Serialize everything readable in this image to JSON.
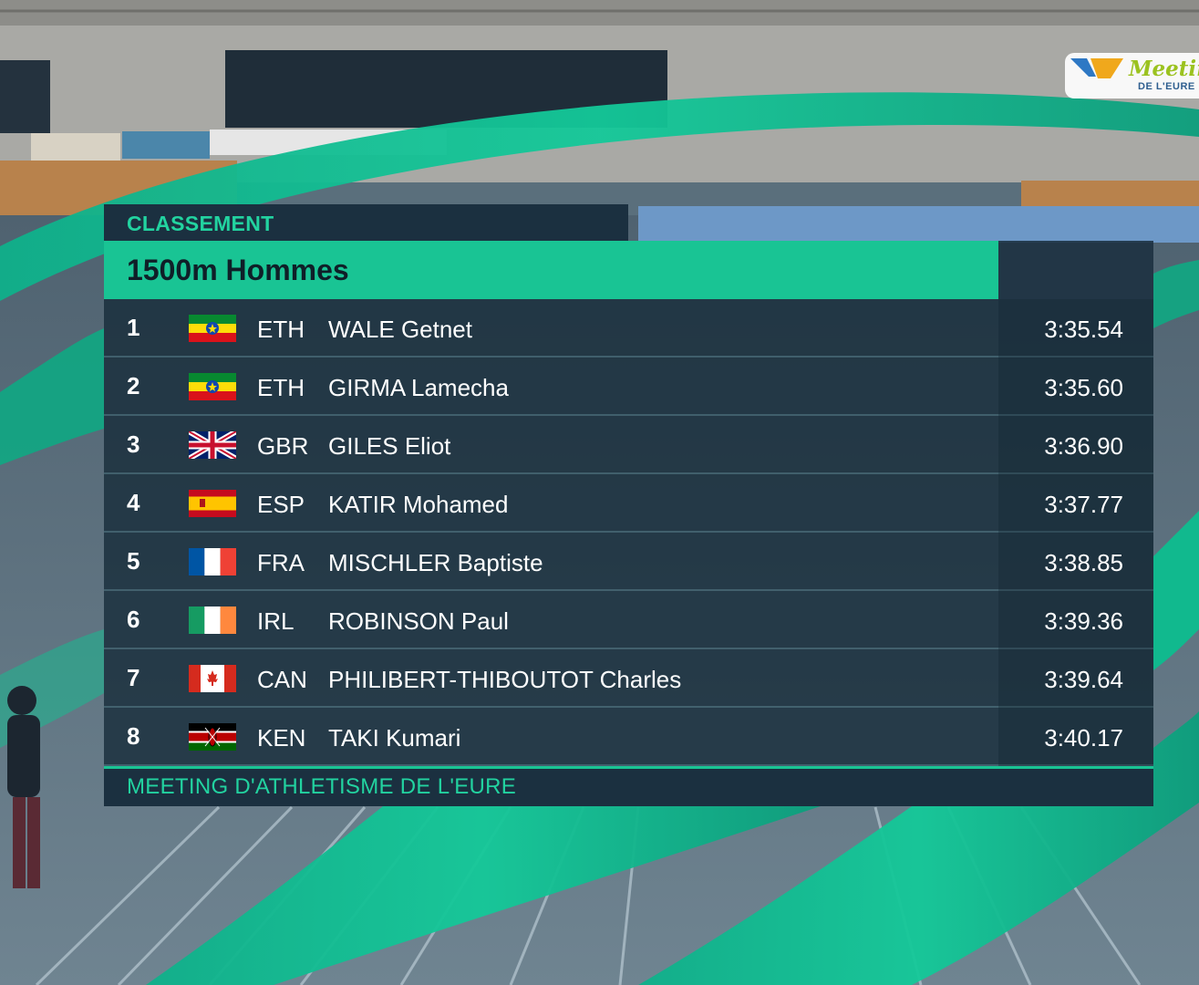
{
  "header": {
    "category": "CLASSEMENT",
    "event_title": "1500m Hommes"
  },
  "results": [
    {
      "rank": "1",
      "nation": "ETH",
      "flag": "ethiopia-flag-icon",
      "name": "WALE Getnet",
      "time": "3:35.54"
    },
    {
      "rank": "2",
      "nation": "ETH",
      "flag": "ethiopia-flag-icon",
      "name": "GIRMA Lamecha",
      "time": "3:35.60"
    },
    {
      "rank": "3",
      "nation": "GBR",
      "flag": "united-kingdom-flag-icon",
      "name": "GILES Eliot",
      "time": "3:36.90"
    },
    {
      "rank": "4",
      "nation": "ESP",
      "flag": "spain-flag-icon",
      "name": "KATIR Mohamed",
      "time": "3:37.77"
    },
    {
      "rank": "5",
      "nation": "FRA",
      "flag": "france-flag-icon",
      "name": "MISCHLER Baptiste",
      "time": "3:38.85"
    },
    {
      "rank": "6",
      "nation": "IRL",
      "flag": "ireland-flag-icon",
      "name": "ROBINSON Paul",
      "time": "3:39.36"
    },
    {
      "rank": "7",
      "nation": "CAN",
      "flag": "canada-flag-icon",
      "name": "PHILIBERT-THIBOUTOT Charles",
      "time": "3:39.64"
    },
    {
      "rank": "8",
      "nation": "KEN",
      "flag": "kenya-flag-icon",
      "name": "TAKI Kumari",
      "time": "3:40.17"
    }
  ],
  "footer": {
    "text": "MEETING D'ATHLETISME DE L'EURE"
  },
  "logo": {
    "word": "Meetin",
    "sub": "DE L'EURE"
  },
  "colors": {
    "accent": "#19c494",
    "panel_dark": "#1b3040",
    "accent_text": "#22d3a0"
  }
}
